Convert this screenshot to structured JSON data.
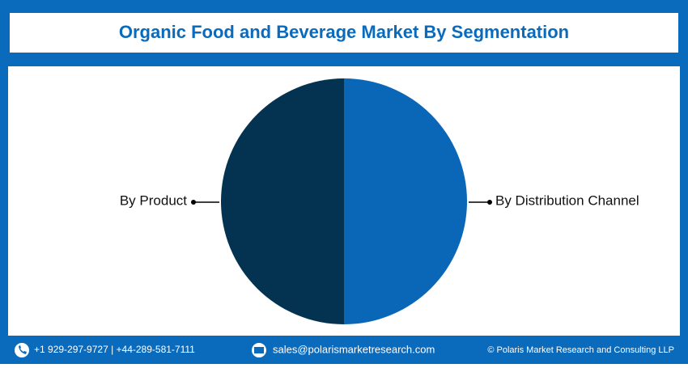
{
  "chart_data": {
    "type": "pie",
    "title": "Organic Food and Beverage Market By Segmentation",
    "categories": [
      "By Distribution Channel",
      "By Product"
    ],
    "values": [
      50,
      50
    ],
    "colors": [
      "#0a67b7",
      "#033350"
    ]
  },
  "footer": {
    "phone": "+1 929-297-9727 | +44-289-581-7111",
    "email": "sales@polarismarketresearch.com",
    "copyright": "© Polaris Market Research and Consulting LLP"
  }
}
